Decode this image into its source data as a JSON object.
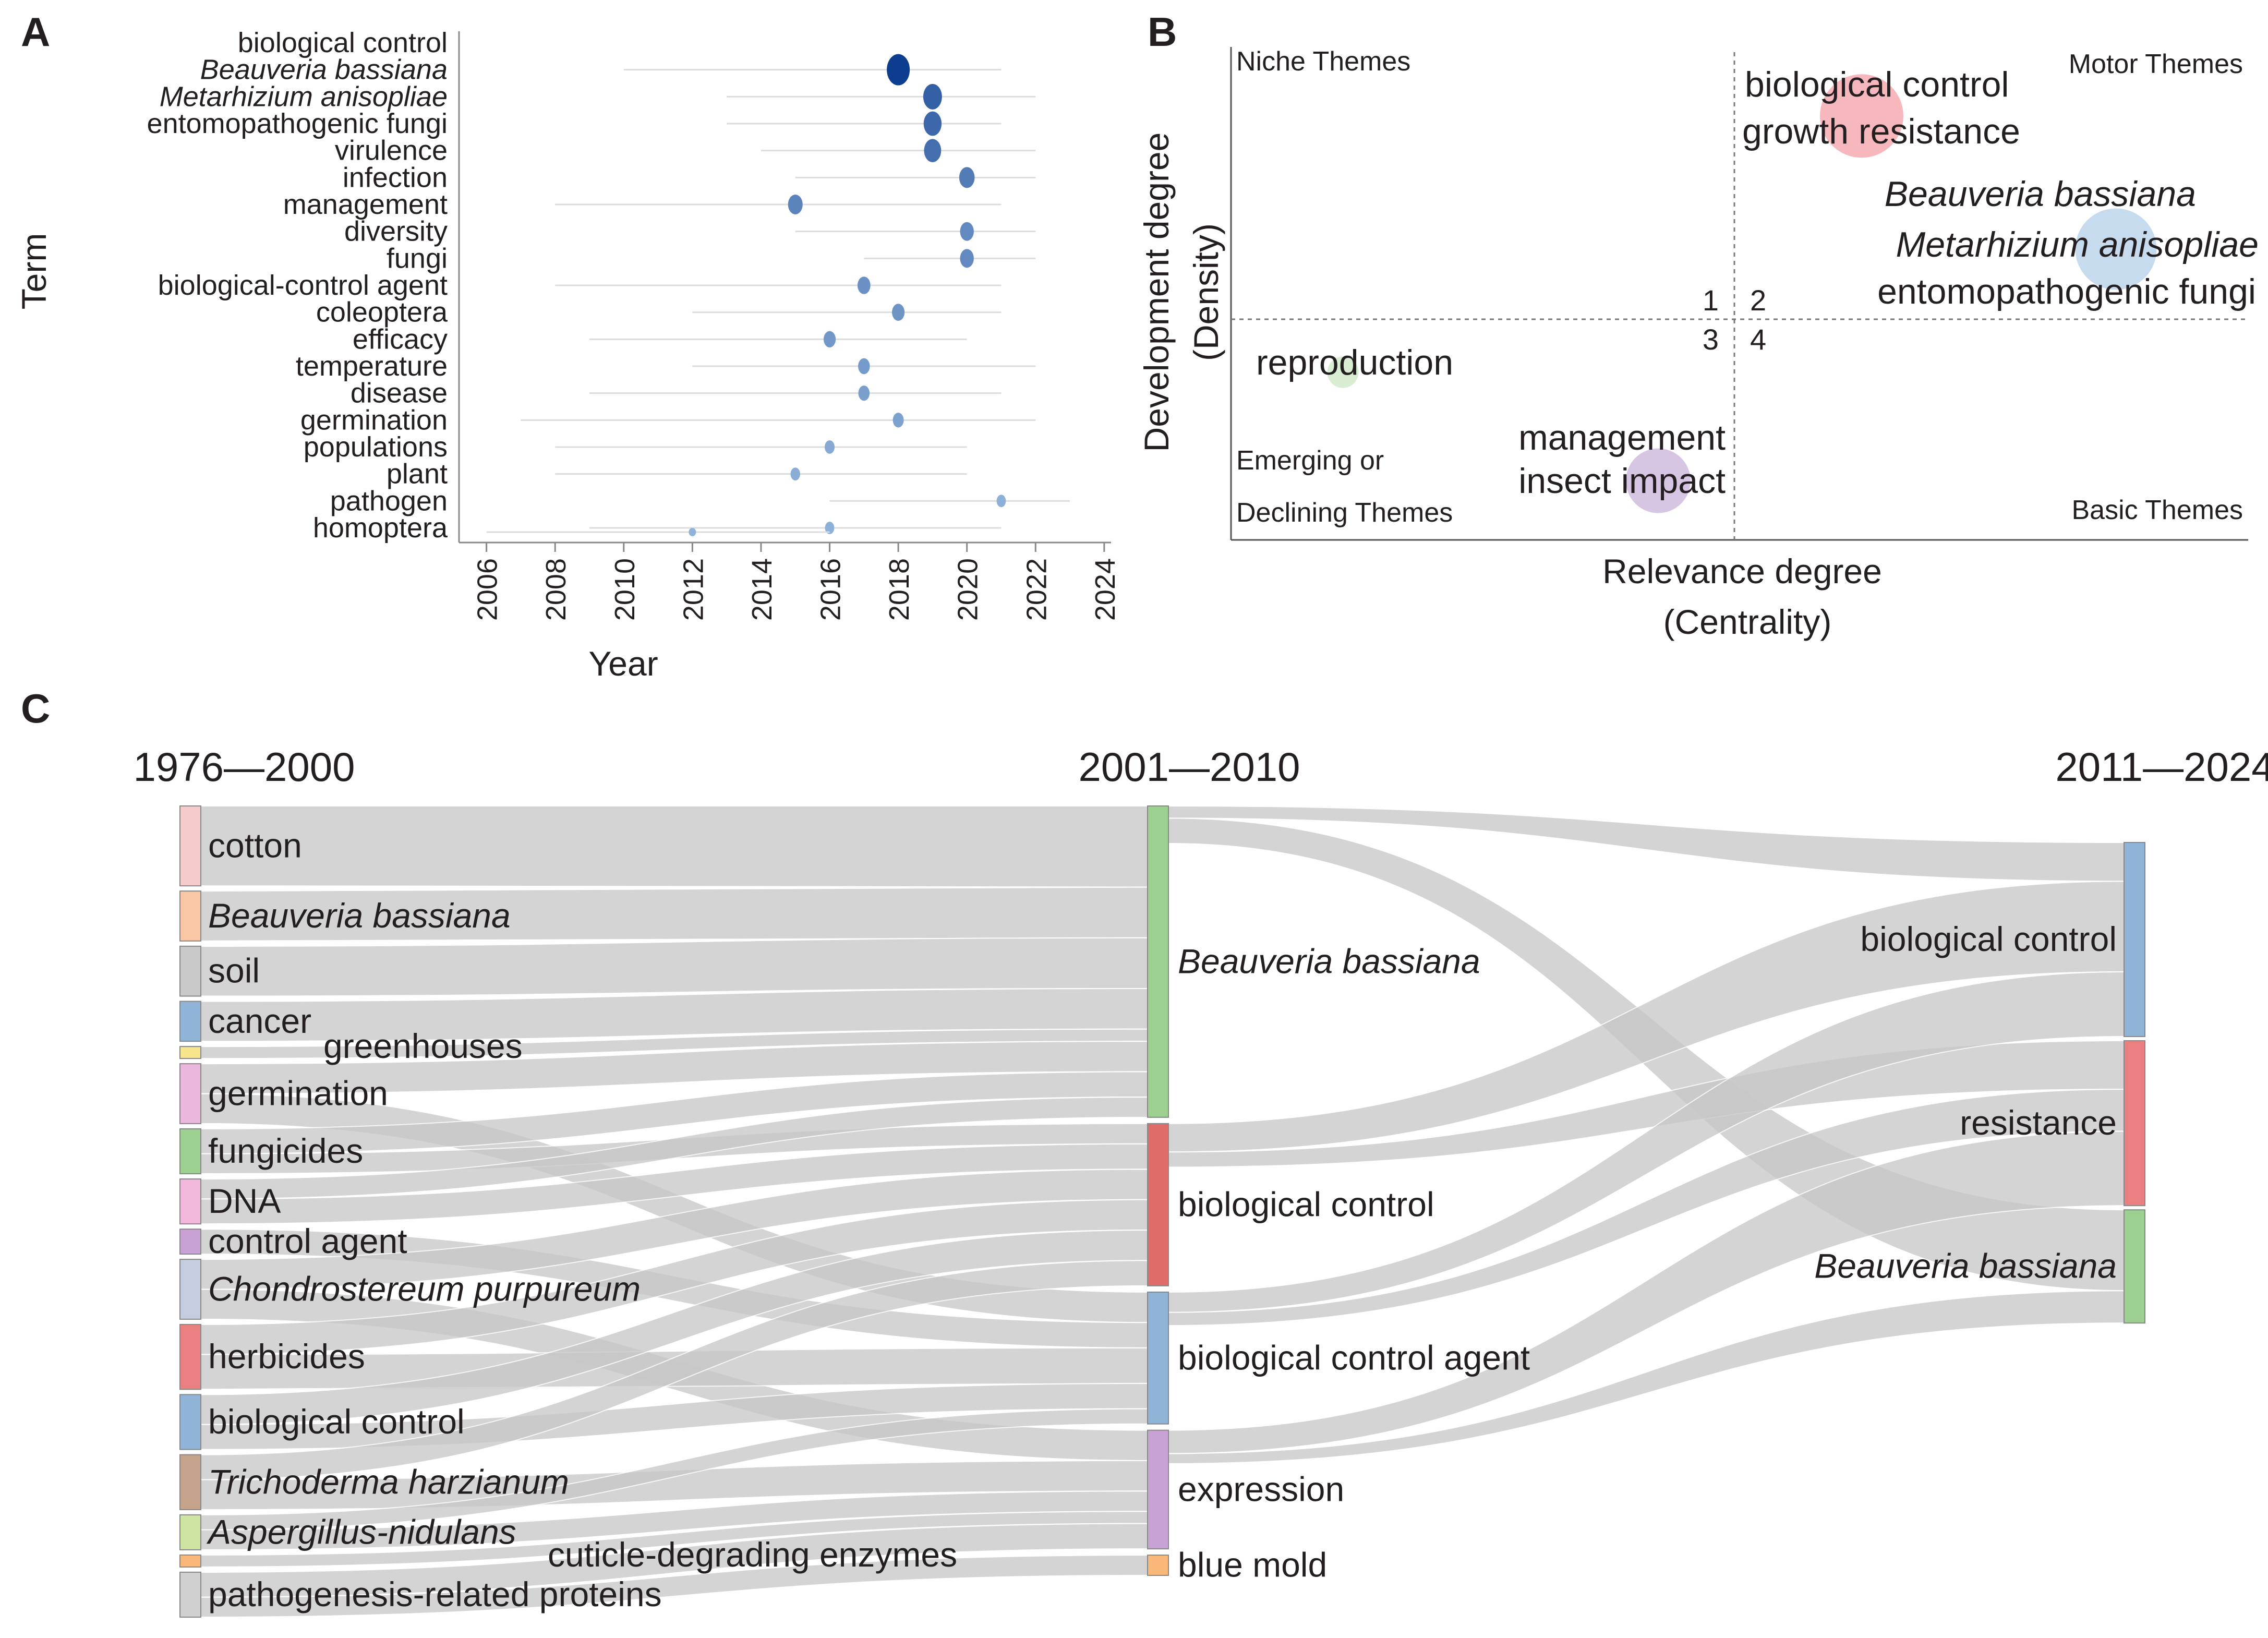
{
  "panels": {
    "a": "A",
    "b": "B",
    "c": "C"
  },
  "chart_data": [
    {
      "type": "scatter",
      "panel": "A",
      "xlabel": "Year",
      "ylabel": "Term",
      "xticks": [
        "2006",
        "2008",
        "2010",
        "2012",
        "2014",
        "2016",
        "2018",
        "2020",
        "2022",
        "2024"
      ],
      "xlim": [
        2005.2,
        2024.2
      ],
      "dot_color_low": "#a9c9e8",
      "dot_color_high": "#0d3d8f",
      "terms": [
        {
          "label": "biological control",
          "italic": false,
          "year": null,
          "range": null,
          "size": 0
        },
        {
          "label": "Beauveria bassiana",
          "italic": true,
          "year": 2018,
          "range": [
            2010,
            2021
          ],
          "size": 1.0
        },
        {
          "label": "Metarhizium anisopliae",
          "italic": true,
          "year": 2019,
          "range": [
            2013,
            2022
          ],
          "size": 0.75
        },
        {
          "label": "entomopathogenic fungi",
          "italic": false,
          "year": 2019,
          "range": [
            2013,
            2021
          ],
          "size": 0.7
        },
        {
          "label": "virulence",
          "italic": false,
          "year": 2019,
          "range": [
            2014,
            2022
          ],
          "size": 0.65
        },
        {
          "label": "infection",
          "italic": false,
          "year": 2020,
          "range": [
            2015,
            2022
          ],
          "size": 0.55
        },
        {
          "label": "management",
          "italic": false,
          "year": 2015,
          "range": [
            2008,
            2021
          ],
          "size": 0.5
        },
        {
          "label": "diversity",
          "italic": false,
          "year": 2020,
          "range": [
            2015,
            2022
          ],
          "size": 0.45
        },
        {
          "label": "fungi",
          "italic": false,
          "year": 2020,
          "range": [
            2017,
            2022
          ],
          "size": 0.45
        },
        {
          "label": "biological-control agent",
          "italic": false,
          "year": 2017,
          "range": [
            2008,
            2021
          ],
          "size": 0.4
        },
        {
          "label": "coleoptera",
          "italic": false,
          "year": 2018,
          "range": [
            2012,
            2021
          ],
          "size": 0.38
        },
        {
          "label": "efficacy",
          "italic": false,
          "year": 2016,
          "range": [
            2009,
            2020
          ],
          "size": 0.35
        },
        {
          "label": "temperature",
          "italic": false,
          "year": 2017,
          "range": [
            2012,
            2022
          ],
          "size": 0.33
        },
        {
          "label": "disease",
          "italic": false,
          "year": 2017,
          "range": [
            2009,
            2021
          ],
          "size": 0.3
        },
        {
          "label": "germination",
          "italic": false,
          "year": 2018,
          "range": [
            2007,
            2022
          ],
          "size": 0.28
        },
        {
          "label": "populations",
          "italic": false,
          "year": 2016,
          "range": [
            2008,
            2020
          ],
          "size": 0.22
        },
        {
          "label": "plant",
          "italic": false,
          "year": 2015,
          "range": [
            2008,
            2020
          ],
          "size": 0.2
        },
        {
          "label": "pathogen",
          "italic": false,
          "year": 2021,
          "range": [
            2016,
            2023
          ],
          "size": 0.18
        },
        {
          "label": "homoptera",
          "italic": false,
          "year": 2016,
          "range": [
            2009,
            2021
          ],
          "size": 0.18
        }
      ],
      "extra_point": {
        "year": 2012,
        "range": [
          2006,
          2016
        ],
        "size": 0.16
      }
    },
    {
      "type": "scatter",
      "panel": "B",
      "xlabel": [
        "Relevance degree",
        "(Centrality)"
      ],
      "ylabel": [
        "Development degree",
        "(Density)"
      ],
      "quadrant_titles": {
        "top_left": "Niche Themes",
        "top_right": "Motor Themes",
        "bottom_left": [
          "Emerging or",
          "Declining Themes"
        ],
        "bottom_right": "Basic Themes"
      },
      "quadrant_numbers": [
        "1",
        "2",
        "3",
        "4"
      ],
      "clusters": [
        {
          "labels": [
            "biological control",
            "growth resistance"
          ],
          "italic": false,
          "centrality": 0.62,
          "density": 0.86,
          "size": 1.0,
          "color": "#f4a6ad"
        },
        {
          "labels": [
            "Beauveria bassiana",
            "Metarhizium anisopliae"
          ],
          "italic": true,
          "extra_labels": [
            "entomopathogenic fungi"
          ],
          "centrality": 0.87,
          "density": 0.59,
          "size": 1.0,
          "color": "#b9d2ea"
        },
        {
          "labels": [
            "reproduction"
          ],
          "italic": false,
          "centrality": 0.11,
          "density": 0.34,
          "size": 0.4,
          "color": "#cfe8c8"
        },
        {
          "labels": [
            "management",
            "insect impact"
          ],
          "italic": false,
          "centrality": 0.42,
          "density": 0.12,
          "size": 1.0,
          "color": "#cdb8dc"
        }
      ]
    },
    {
      "type": "sankey",
      "panel": "C",
      "periods": [
        "1976—2000",
        "2001—2010",
        "2011—2024"
      ],
      "link_color": "#c8c8c8",
      "columns": [
        [
          {
            "id": "L0",
            "label": "cotton",
            "italic": false,
            "weight": 8,
            "color": "#f4cccc"
          },
          {
            "id": "L1",
            "label": "Beauveria bassiana",
            "italic": true,
            "weight": 5,
            "color": "#f9c6a6"
          },
          {
            "id": "L2",
            "label": "soil",
            "italic": false,
            "weight": 5,
            "color": "#c9c9c9"
          },
          {
            "id": "L3",
            "label": "cancer",
            "italic": false,
            "weight": 4,
            "color": "#8fb4d8"
          },
          {
            "id": "L4",
            "label": "greenhouses",
            "italic": false,
            "weight": 1.2,
            "color": "#f6e58d"
          },
          {
            "id": "L5",
            "label": "germination",
            "italic": false,
            "weight": 6,
            "color": "#e9b8dc"
          },
          {
            "id": "L6",
            "label": "fungicides",
            "italic": false,
            "weight": 4.5,
            "color": "#9ccf90"
          },
          {
            "id": "L7",
            "label": "DNA",
            "italic": false,
            "weight": 4.5,
            "color": "#f1b8dc"
          },
          {
            "id": "L8",
            "label": "control agent",
            "italic": false,
            "weight": 2.5,
            "color": "#c8a2d4"
          },
          {
            "id": "L9",
            "label": "Chondrostereum purpureum",
            "italic": true,
            "weight": 6,
            "color": "#c4cce0"
          },
          {
            "id": "L10",
            "label": "herbicides",
            "italic": false,
            "weight": 6.5,
            "color": "#e88080"
          },
          {
            "id": "L11",
            "label": "biological control",
            "italic": false,
            "weight": 5.5,
            "color": "#8fb4d8"
          },
          {
            "id": "L12",
            "label": "Trichoderma harzianum",
            "italic": true,
            "weight": 5.5,
            "color": "#c4a38a"
          },
          {
            "id": "L13",
            "label": "Aspergillus-nidulans",
            "italic": true,
            "weight": 3.5,
            "color": "#cfe3a3"
          },
          {
            "id": "L14",
            "label": "cuticle-degrading enzymes",
            "italic": false,
            "weight": 1.2,
            "color": "#f7b87a"
          },
          {
            "id": "L15",
            "label": "pathogenesis-related proteins",
            "italic": false,
            "weight": 4.5,
            "color": "#d0d0d0"
          }
        ],
        [
          {
            "id": "M0",
            "label": "Beauveria bassiana",
            "italic": true,
            "color": "#9ccf90"
          },
          {
            "id": "M1",
            "label": "biological control",
            "italic": false,
            "color": "#e06b6b"
          },
          {
            "id": "M2",
            "label": "biological control agent",
            "italic": false,
            "color": "#8fb4d8"
          },
          {
            "id": "M3",
            "label": "expression",
            "italic": false,
            "color": "#c8a2d4"
          },
          {
            "id": "M4",
            "label": "blue mold",
            "italic": false,
            "color": "#f7b87a"
          }
        ],
        [
          {
            "id": "R0",
            "label": "biological control",
            "italic": false,
            "color": "#8fb4d8"
          },
          {
            "id": "R1",
            "label": "resistance",
            "italic": false,
            "color": "#e88080"
          },
          {
            "id": "R2",
            "label": "Beauveria bassiana",
            "italic": true,
            "color": "#9ccf90"
          }
        ]
      ],
      "links": [
        {
          "source": "L0",
          "target": "M0",
          "value": 8
        },
        {
          "source": "L1",
          "target": "M0",
          "value": 5
        },
        {
          "source": "L2",
          "target": "M0",
          "value": 5
        },
        {
          "source": "L3",
          "target": "M0",
          "value": 4
        },
        {
          "source": "L4",
          "target": "M0",
          "value": 1.2
        },
        {
          "source": "L5",
          "target": "M0",
          "value": 3
        },
        {
          "source": "L5",
          "target": "M2",
          "value": 3
        },
        {
          "source": "L6",
          "target": "M0",
          "value": 2.5
        },
        {
          "source": "L6",
          "target": "M1",
          "value": 2
        },
        {
          "source": "L7",
          "target": "M0",
          "value": 2
        },
        {
          "source": "L7",
          "target": "M1",
          "value": 2.5
        },
        {
          "source": "L8",
          "target": "M2",
          "value": 2.5
        },
        {
          "source": "L9",
          "target": "M1",
          "value": 3
        },
        {
          "source": "L9",
          "target": "M3",
          "value": 3
        },
        {
          "source": "L10",
          "target": "M1",
          "value": 3
        },
        {
          "source": "L10",
          "target": "M2",
          "value": 3.5
        },
        {
          "source": "L11",
          "target": "M1",
          "value": 3
        },
        {
          "source": "L11",
          "target": "M2",
          "value": 2.5
        },
        {
          "source": "L12",
          "target": "M1",
          "value": 2.5
        },
        {
          "source": "L12",
          "target": "M3",
          "value": 3
        },
        {
          "source": "L13",
          "target": "M2",
          "value": 1.5
        },
        {
          "source": "L13",
          "target": "M3",
          "value": 2
        },
        {
          "source": "L14",
          "target": "M3",
          "value": 1.2
        },
        {
          "source": "L15",
          "target": "M3",
          "value": 2.5
        },
        {
          "source": "L15",
          "target": "M4",
          "value": 2
        },
        {
          "source": "M0",
          "target": "R0",
          "value": 1.2
        },
        {
          "source": "M0",
          "target": "R2",
          "value": 2.5
        },
        {
          "source": "M1",
          "target": "R0",
          "value": 2.8
        },
        {
          "source": "M1",
          "target": "R1",
          "value": 1.5
        },
        {
          "source": "M2",
          "target": "R0",
          "value": 2.0
        },
        {
          "source": "M2",
          "target": "R1",
          "value": 1.3
        },
        {
          "source": "M3",
          "target": "R1",
          "value": 2.3
        },
        {
          "source": "M3",
          "target": "R2",
          "value": 1.0
        }
      ]
    }
  ]
}
